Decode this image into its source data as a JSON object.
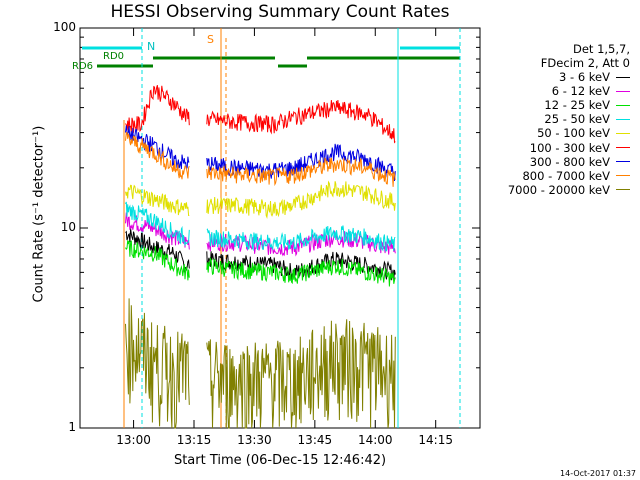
{
  "title": "HESSI Observing Summary Count Rates",
  "xlabel": "Start Time (06-Dec-15 12:46:42)",
  "ylabel": "Count Rate (s⁻¹ detector⁻¹)",
  "timestamp": "14-Oct-2017 01:37",
  "legend_header": [
    "Det 1,5,7,",
    "FDecim 2, Att 0"
  ],
  "markers": {
    "n": "N",
    "s": "S",
    "rd0": "RD0",
    "rd6": "RD6"
  },
  "chart_data": {
    "type": "line",
    "title": "HESSI Observing Summary Count Rates",
    "xlabel": "Start Time (06-Dec-15 12:46:42)",
    "ylabel": "Count Rate (s^-1 detector^-1)",
    "y_scale": "log",
    "ylim": [
      1,
      100
    ],
    "xlim": [
      "12:46:42",
      "14:26:00"
    ],
    "x_ticks": [
      "13:00",
      "13:15",
      "13:30",
      "13:45",
      "14:00",
      "14:15"
    ],
    "y_ticks": [
      "1",
      "10",
      "100"
    ],
    "legend_position": "right",
    "gaps": [
      [
        "12:46:42",
        "12:57:30"
      ],
      [
        "13:14:00",
        "13:18:00"
      ],
      [
        "14:05:00",
        "14:26:00"
      ]
    ],
    "series": [
      {
        "name": "3 - 6 keV",
        "color": "#000000",
        "x": [
          "12:58",
          "13:05",
          "13:10",
          "13:13",
          "13:18",
          "13:25",
          "13:35",
          "13:40",
          "13:50",
          "13:58",
          "14:02",
          "14:05"
        ],
        "y": [
          9.5,
          8,
          7.5,
          6.5,
          7,
          6.8,
          6.5,
          6,
          7,
          6.5,
          6.2,
          6
        ]
      },
      {
        "name": "6 - 12 keV",
        "color": "#e000e0",
        "x": [
          "12:58",
          "13:05",
          "13:10",
          "13:13",
          "13:18",
          "13:25",
          "13:35",
          "13:40",
          "13:50",
          "13:58",
          "14:02",
          "14:05"
        ],
        "y": [
          11,
          10,
          9,
          8.5,
          8.5,
          8.5,
          8,
          8,
          9,
          8.5,
          8,
          8
        ]
      },
      {
        "name": "12 - 25 keV",
        "color": "#00e000",
        "x": [
          "12:58",
          "13:05",
          "13:10",
          "13:13",
          "13:18",
          "13:25",
          "13:35",
          "13:40",
          "13:50",
          "13:58",
          "14:02",
          "14:05"
        ],
        "y": [
          8,
          7.5,
          6.5,
          6,
          6.5,
          6.2,
          6,
          5.8,
          6.5,
          6,
          5.8,
          5.5
        ]
      },
      {
        "name": "25 - 50 keV",
        "color": "#00e0e0",
        "x": [
          "12:58",
          "13:05",
          "13:10",
          "13:13",
          "13:18",
          "13:25",
          "13:35",
          "13:40",
          "13:50",
          "13:58",
          "14:02",
          "14:05"
        ],
        "y": [
          12.5,
          11,
          9.5,
          9,
          9,
          8.8,
          8.5,
          8.5,
          9.5,
          9,
          8.5,
          8.2
        ]
      },
      {
        "name": "50 - 100 keV",
        "color": "#e0e000",
        "x": [
          "12:58",
          "13:05",
          "13:10",
          "13:13",
          "13:18",
          "13:25",
          "13:35",
          "13:40",
          "13:50",
          "13:58",
          "14:02",
          "14:05"
        ],
        "y": [
          15.5,
          14,
          13,
          12.5,
          13,
          13,
          12.5,
          13,
          16,
          15,
          14,
          13.5
        ]
      },
      {
        "name": "100 - 300 keV",
        "color": "#ff0000",
        "x": [
          "12:58",
          "13:02",
          "13:05",
          "13:10",
          "13:13",
          "13:18",
          "13:25",
          "13:35",
          "13:40",
          "13:50",
          "13:58",
          "14:02",
          "14:05"
        ],
        "y": [
          33,
          33,
          50,
          42,
          36,
          35,
          34,
          33,
          36,
          40,
          37,
          32,
          29
        ]
      },
      {
        "name": "300 - 800 keV",
        "color": "#0000e0",
        "x": [
          "12:58",
          "13:05",
          "13:10",
          "13:13",
          "13:18",
          "13:25",
          "13:35",
          "13:40",
          "13:50",
          "13:58",
          "14:02",
          "14:05"
        ],
        "y": [
          30,
          26,
          22,
          21,
          21,
          20,
          19.5,
          20,
          24,
          22,
          20,
          19
        ]
      },
      {
        "name": "800 - 7000 keV",
        "color": "#ff8000",
        "x": [
          "12:58",
          "13:05",
          "13:10",
          "13:13",
          "13:18",
          "13:25",
          "13:35",
          "13:40",
          "13:50",
          "13:58",
          "14:02",
          "14:05"
        ],
        "y": [
          28,
          24,
          20,
          19,
          19,
          18.5,
          18,
          18.5,
          21,
          20,
          18.5,
          17.5
        ]
      },
      {
        "name": "7000 - 20000 keV",
        "color": "#808000",
        "x": [
          "12:58",
          "13:05",
          "13:10",
          "13:13",
          "13:18",
          "13:25",
          "13:35",
          "13:40",
          "13:50",
          "13:58",
          "14:02",
          "14:05"
        ],
        "y": [
          3,
          2.2,
          2,
          2,
          1.8,
          1.8,
          1.8,
          1.8,
          2.3,
          2.2,
          2,
          2
        ]
      }
    ]
  }
}
